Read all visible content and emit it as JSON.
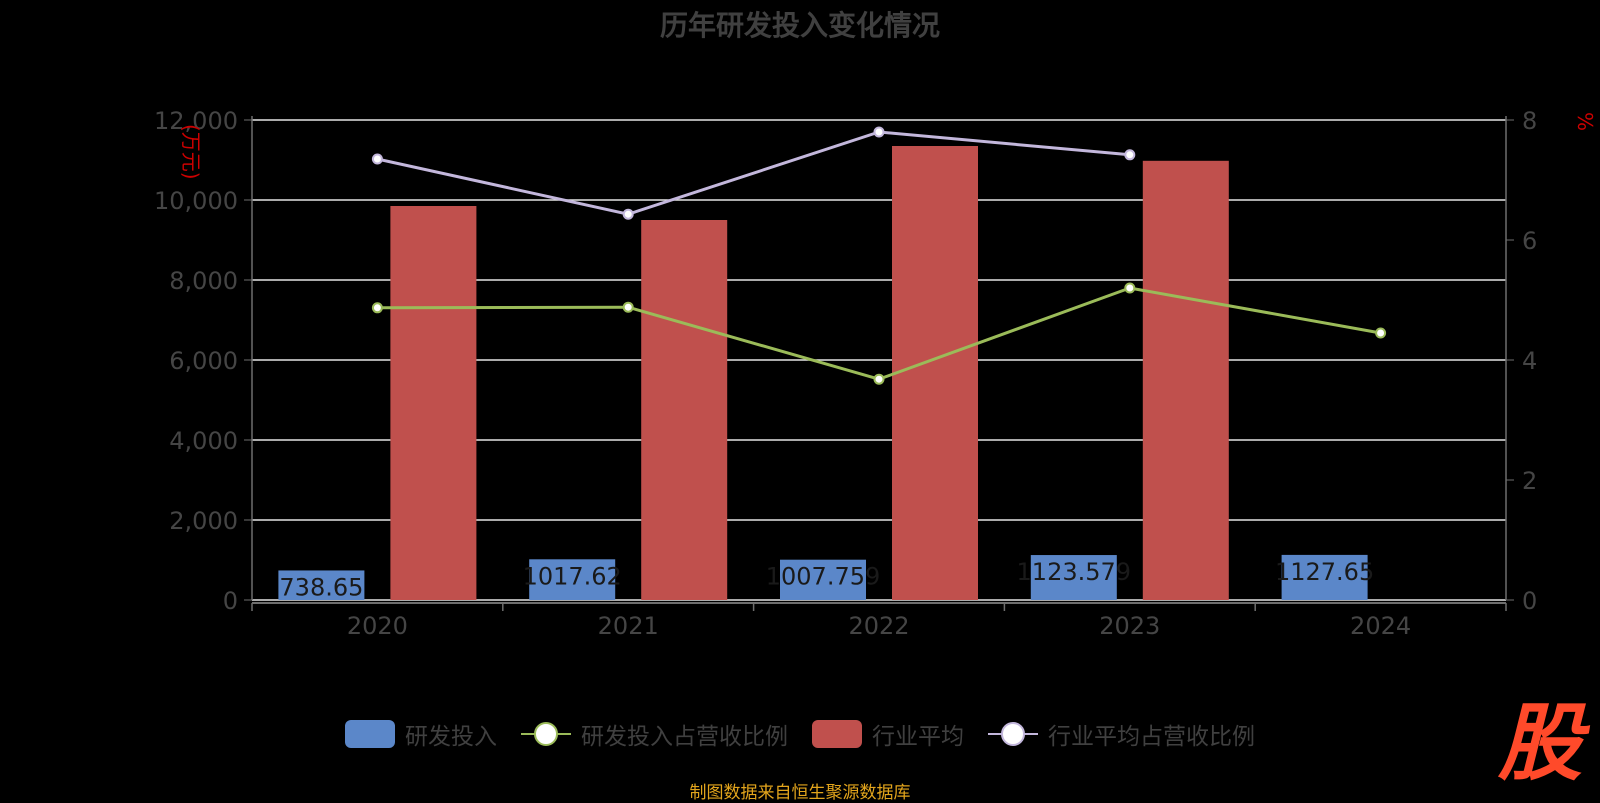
{
  "title": "历年研发投入变化情况",
  "footer": "制图数据来自恒生聚源数据库",
  "logo_text": "股",
  "chart_data": {
    "type": "bar",
    "categories": [
      "2020",
      "2021",
      "2022",
      "2023",
      "2024"
    ],
    "y_left_label": "(万元)",
    "y_right_label": "%",
    "y_left_range": [
      0,
      12000
    ],
    "y_left_ticks": [
      "0",
      "2,000",
      "4,000",
      "6,000",
      "8,000",
      "10,000",
      "12,000"
    ],
    "y_right_range": [
      0,
      8
    ],
    "y_right_ticks": [
      "0",
      "2",
      "4",
      "6",
      "8"
    ],
    "grid": true,
    "legend_position": "bottom",
    "series": [
      {
        "name": "研发投入",
        "type": "bar",
        "axis": "left",
        "color": "#5b87c9",
        "values": [
          738.65,
          1017.62,
          1007.759,
          1123.579,
          1127.65
        ],
        "labels": [
          "738.65",
          "1017.62",
          "1007.759",
          "1123.579",
          "1127.65"
        ]
      },
      {
        "name": "研发投入占营收比例",
        "type": "line",
        "axis": "right",
        "color": "#9bbb59",
        "values": [
          4.87,
          4.88,
          3.68,
          5.2,
          4.45
        ]
      },
      {
        "name": "行业平均",
        "type": "bar",
        "axis": "left",
        "color": "#c0504d",
        "values": [
          9850,
          9500,
          11350,
          10980,
          null
        ]
      },
      {
        "name": "行业平均占营收比例",
        "type": "line",
        "axis": "right",
        "color": "#c3b7dc",
        "values": [
          7.35,
          6.43,
          7.8,
          7.42,
          null
        ]
      }
    ]
  }
}
